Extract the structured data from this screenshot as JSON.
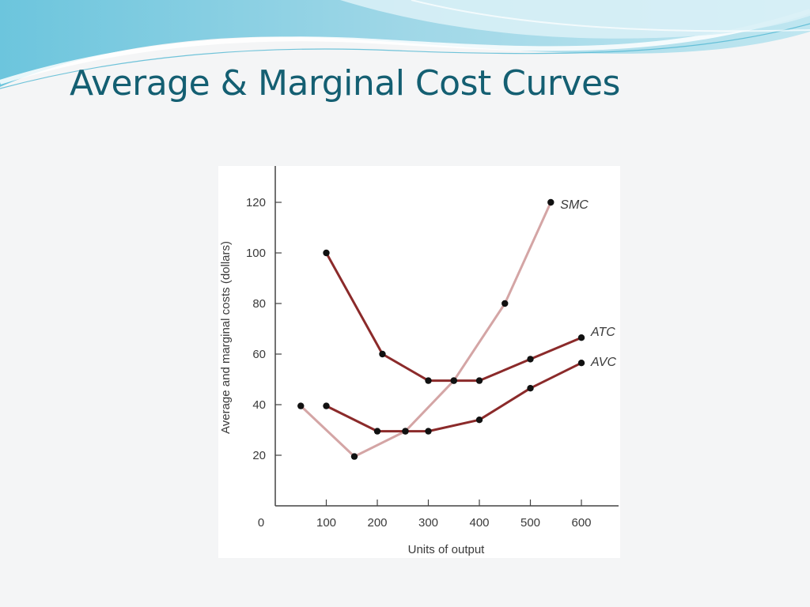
{
  "slide": {
    "title": "Average & Marginal Cost Curves"
  },
  "colors": {
    "title": "#145f72",
    "atc_avc": "#8b2a2a",
    "smc": "#d4a5a5",
    "marker": "#111111",
    "axis": "#444444"
  },
  "chart_data": {
    "type": "line",
    "title": "",
    "xlabel": "Units of output",
    "ylabel": "Average and marginal costs (dollars)",
    "xlim": [
      0,
      650
    ],
    "ylim": [
      0,
      135
    ],
    "grid": false,
    "x_ticks": [
      0,
      100,
      200,
      300,
      400,
      500,
      600
    ],
    "y_ticks": [
      20,
      40,
      60,
      80,
      100,
      120
    ],
    "series": [
      {
        "name": "ATC",
        "label": "ATC",
        "color": "#8b2a2a",
        "x": [
          100,
          210,
          300,
          350,
          400,
          500,
          600
        ],
        "y": [
          100,
          60,
          49.5,
          49.5,
          49.5,
          58,
          66.5
        ]
      },
      {
        "name": "AVC",
        "label": "AVC",
        "color": "#8b2a2a",
        "x": [
          100,
          200,
          255,
          300,
          400,
          500,
          600
        ],
        "y": [
          39.5,
          29.5,
          29.5,
          29.5,
          34,
          46.5,
          56.5
        ]
      },
      {
        "name": "SMC",
        "label": "SMC",
        "color": "#d4a5a5",
        "x": [
          50,
          155,
          255,
          350,
          450,
          540
        ],
        "y": [
          39.5,
          19.5,
          29.5,
          49.5,
          80,
          120
        ]
      }
    ]
  }
}
